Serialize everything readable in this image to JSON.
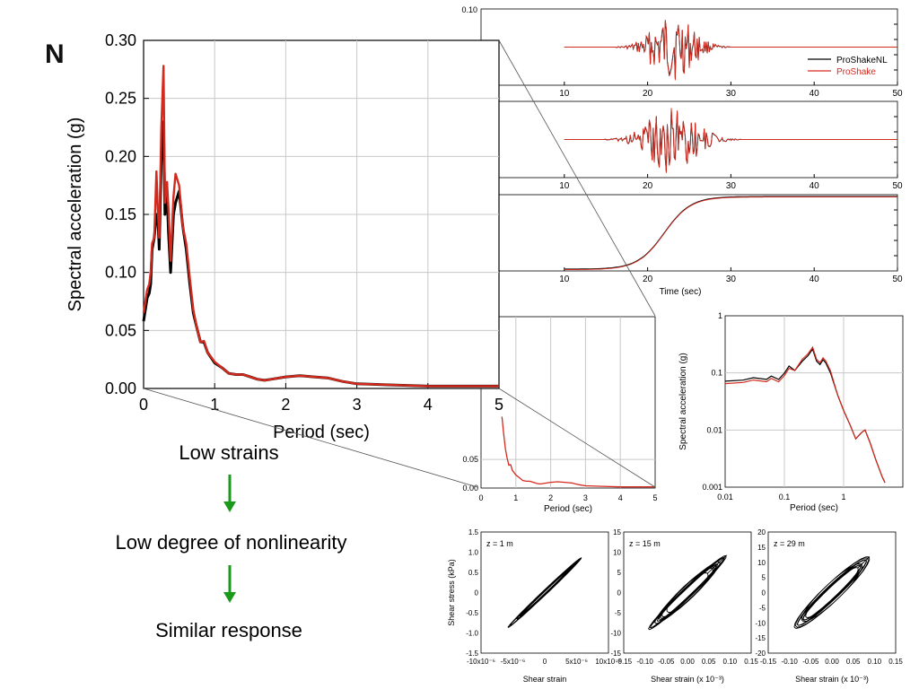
{
  "slide": {
    "title_fragment": "N",
    "bullets": {
      "low_strains": "Low strains",
      "low_nonlinearity": "Low degree of nonlinearity",
      "similar_response": "Similar response"
    },
    "arrow_color": "#1a9a1a"
  },
  "colors": {
    "proshakenl": "#000000",
    "proshake": "#d42a1e"
  },
  "chart_data": [
    {
      "type": "line",
      "id": "main-spectrum",
      "xlabel": "Period (sec)",
      "ylabel": "Spectral acceleration (g)",
      "xlim": [
        0,
        5
      ],
      "ylim": [
        0,
        0.3
      ],
      "xticks": [
        "0",
        "1",
        "2",
        "3",
        "4",
        "5"
      ],
      "yticks": [
        "0.00",
        "0.05",
        "0.10",
        "0.15",
        "0.20",
        "0.25",
        "0.30"
      ],
      "grid": true,
      "series": [
        {
          "x": [
            0,
            0.05,
            0.08,
            0.1,
            0.12,
            0.15,
            0.18,
            0.2,
            0.22,
            0.25,
            0.28,
            0.3,
            0.33,
            0.35,
            0.38,
            0.42,
            0.45,
            0.5,
            0.55,
            0.6,
            0.65,
            0.7,
            0.75,
            0.8,
            0.85,
            0.9,
            1.0,
            1.1,
            1.2,
            1.3,
            1.4,
            1.5,
            1.6,
            1.7,
            1.8,
            2.0,
            2.2,
            2.4,
            2.6,
            2.8,
            3.0,
            3.5,
            4.0,
            4.5,
            5.0
          ],
          "y": [
            0.058,
            0.078,
            0.082,
            0.09,
            0.12,
            0.13,
            0.15,
            0.15,
            0.12,
            0.2,
            0.23,
            0.15,
            0.17,
            0.135,
            0.1,
            0.15,
            0.16,
            0.17,
            0.14,
            0.12,
            0.09,
            0.065,
            0.052,
            0.04,
            0.04,
            0.031,
            0.022,
            0.018,
            0.013,
            0.012,
            0.012,
            0.01,
            0.008,
            0.007,
            0.008,
            0.01,
            0.011,
            0.01,
            0.009,
            0.006,
            0.004,
            0.003,
            0.002,
            0.002,
            0.002
          ]
        },
        {
          "x": [
            0,
            0.05,
            0.08,
            0.1,
            0.12,
            0.15,
            0.18,
            0.2,
            0.22,
            0.25,
            0.28,
            0.3,
            0.33,
            0.35,
            0.38,
            0.42,
            0.45,
            0.5,
            0.55,
            0.6,
            0.65,
            0.7,
            0.75,
            0.8,
            0.85,
            0.9,
            1.0,
            1.1,
            1.2,
            1.3,
            1.4,
            1.5,
            1.6,
            1.7,
            1.8,
            2.0,
            2.2,
            2.4,
            2.6,
            2.8,
            3.0,
            3.5,
            4.0,
            4.5,
            5.0
          ],
          "y": [
            0.065,
            0.085,
            0.09,
            0.1,
            0.125,
            0.13,
            0.187,
            0.155,
            0.13,
            0.225,
            0.278,
            0.16,
            0.178,
            0.155,
            0.11,
            0.165,
            0.185,
            0.175,
            0.14,
            0.125,
            0.095,
            0.068,
            0.052,
            0.04,
            0.041,
            0.031,
            0.023,
            0.018,
            0.013,
            0.012,
            0.012,
            0.01,
            0.008,
            0.007,
            0.008,
            0.01,
            0.011,
            0.01,
            0.009,
            0.006,
            0.004,
            0.003,
            0.002,
            0.002,
            0.002
          ]
        }
      ]
    },
    {
      "type": "line",
      "id": "acceleration-history",
      "xlim": [
        0,
        50
      ],
      "ylim": [
        -0.1,
        0.1
      ],
      "yticks": [
        "0.10"
      ],
      "xticks": [
        "10",
        "20",
        "30",
        "40",
        "50"
      ],
      "legend": {
        "position": "top-right",
        "entries": [
          "ProShakeNL",
          "ProShake"
        ]
      }
    },
    {
      "type": "line",
      "id": "velocity-history",
      "xlim": [
        0,
        50
      ],
      "xticks": [
        "10",
        "20",
        "30",
        "40",
        "50"
      ]
    },
    {
      "type": "line",
      "id": "arias-history",
      "xlim": [
        0,
        50
      ],
      "xlabel": "Time (sec)",
      "xticks": [
        "10",
        "20",
        "30",
        "40",
        "50"
      ]
    },
    {
      "type": "line",
      "id": "zoom-spectrum",
      "xlim": [
        0,
        5
      ],
      "xlabel": "Period (sec)",
      "xticks": [
        "0",
        "1",
        "2",
        "3",
        "4",
        "5"
      ],
      "yticks": [
        "0.05",
        "0.00"
      ],
      "grid": true
    },
    {
      "type": "line",
      "id": "log-spectrum",
      "xlim": [
        0.01,
        10
      ],
      "ylim": [
        0.001,
        1
      ],
      "scale": "log-log",
      "xlabel": "Period (sec)",
      "ylabel": "Spectral acceleration (g)",
      "xticks": [
        "0.01",
        "0.1",
        "1"
      ],
      "yticks": [
        "1",
        "0.1",
        "0.01",
        "0.001"
      ],
      "grid": true
    },
    {
      "type": "scatter",
      "id": "hysteresis-1",
      "annotation": "z = 1 m",
      "xlabel": "Shear strain",
      "ylabel": "Shear stress (kPa)",
      "xticks": [
        "-10x10⁻⁶",
        "-5x10⁻⁶",
        "0",
        "5x10⁻⁶",
        "10x10⁻⁶"
      ],
      "yticks": [
        "1.5",
        "1.0",
        "0.5",
        "0",
        "-0.5",
        "-1.0",
        "-1.5"
      ]
    },
    {
      "type": "scatter",
      "id": "hysteresis-15",
      "annotation": "z = 15 m",
      "xlabel": "Shear strain (x 10⁻³)",
      "xticks": [
        "-0.15",
        "-0.10",
        "-0.05",
        "0.00",
        "0.05",
        "0.10",
        "0.15"
      ],
      "yticks": [
        "15",
        "10",
        "5",
        "0",
        "-5",
        "-10",
        "-15"
      ]
    },
    {
      "type": "scatter",
      "id": "hysteresis-29",
      "annotation": "z = 29 m",
      "xlabel": "Shear strain (x 10⁻³)",
      "xticks": [
        "-0.15",
        "-0.10",
        "-0.05",
        "0.00",
        "0.05",
        "0.10",
        "0.15"
      ],
      "yticks": [
        "20",
        "15",
        "10",
        "5",
        "0",
        "-5",
        "-10",
        "-15",
        "-20"
      ]
    }
  ]
}
